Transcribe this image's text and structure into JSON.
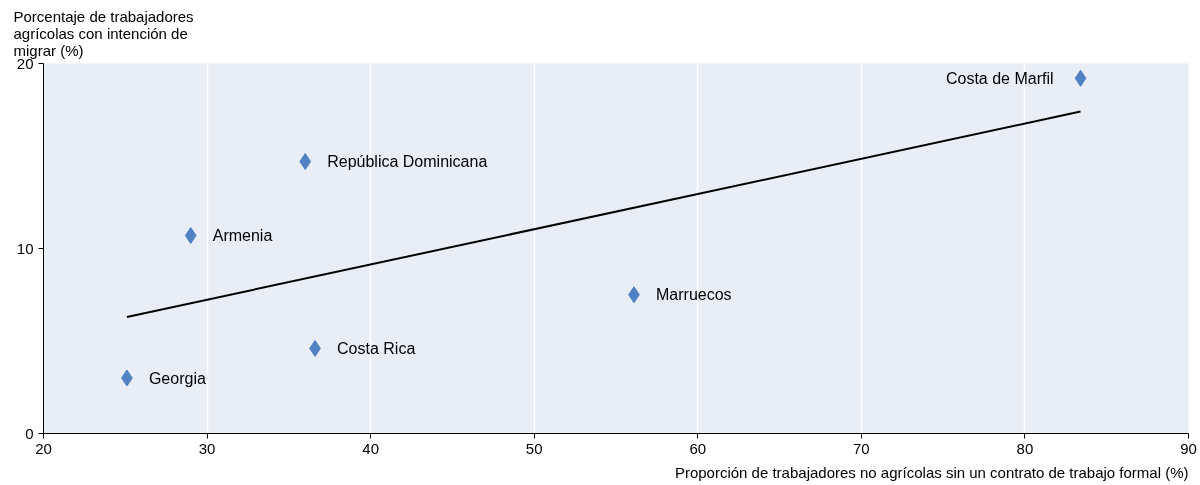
{
  "chart_data": {
    "type": "scatter",
    "xlabel": "Proporción de trabajadores no agrícolas sin un contrato de trabajo formal (%)",
    "ylabel": "Porcentaje de trabajadores agrícolas con intención de migrar (%)",
    "xlim": [
      20,
      90
    ],
    "ylim": [
      0,
      20
    ],
    "xticks": [
      20,
      30,
      40,
      50,
      60,
      70,
      80,
      90
    ],
    "yticks": [
      0,
      10,
      20
    ],
    "grid": "x",
    "series": [
      {
        "marker": "diamond",
        "color": "#4f81c3",
        "x": [
          83.4,
          36.0,
          29.0,
          56.1,
          36.6,
          25.1
        ],
        "values": [
          19.2,
          14.7,
          10.7,
          7.5,
          4.6,
          3.0
        ]
      },
      {
        "type": "line",
        "color": "#000000",
        "x": [
          25.1,
          83.4
        ],
        "values": [
          6.3,
          17.4
        ]
      }
    ],
    "annotations": [
      {
        "text": "Costa de Marfil",
        "x": 83.4,
        "y": 19.2
      },
      {
        "text": "República Dominicana",
        "x": 36.0,
        "y": 14.7
      },
      {
        "text": "Armenia",
        "x": 29.0,
        "y": 10.7
      },
      {
        "text": "Marruecos",
        "x": 56.1,
        "y": 7.5
      },
      {
        "text": "Costa Rica",
        "x": 36.6,
        "y": 4.6
      },
      {
        "text": "Georgia",
        "x": 25.1,
        "y": 3.0
      }
    ]
  }
}
